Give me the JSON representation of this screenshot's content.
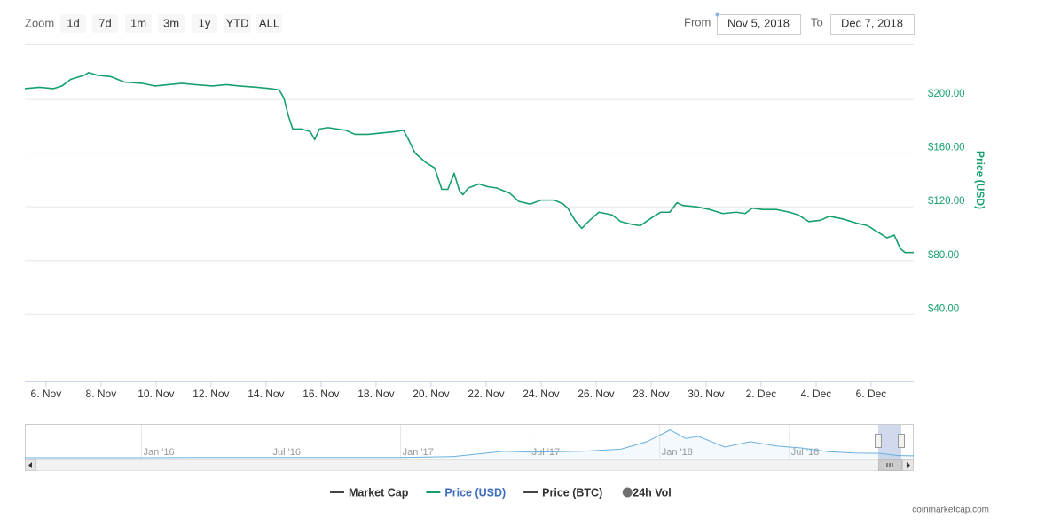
{
  "range_selector": {
    "label": "Zoom",
    "buttons": [
      "1d",
      "7d",
      "1m",
      "3m",
      "1y",
      "YTD",
      "ALL"
    ],
    "from_label": "From",
    "from": "Nov 5, 2018",
    "to_label": "To",
    "to": "Dec 7, 2018"
  },
  "credit": "coinmarketcap.com",
  "chart_data": [
    {
      "type": "line",
      "y_axis_title": "Price (USD)",
      "y_axis_side": "right",
      "grid": true,
      "xlim": [
        5.23,
        37.55
      ],
      "xticks": [
        {
          "value": 6,
          "label": "6. Nov"
        },
        {
          "value": 8,
          "label": "8. Nov"
        },
        {
          "value": 10,
          "label": "10. Nov"
        },
        {
          "value": 12,
          "label": "12. Nov"
        },
        {
          "value": 14,
          "label": "14. Nov"
        },
        {
          "value": 16,
          "label": "16. Nov"
        },
        {
          "value": 18,
          "label": "18. Nov"
        },
        {
          "value": 20,
          "label": "20. Nov"
        },
        {
          "value": 22,
          "label": "22. Nov"
        },
        {
          "value": 24,
          "label": "24. Nov"
        },
        {
          "value": 26,
          "label": "26. Nov"
        },
        {
          "value": 28,
          "label": "28. Nov"
        },
        {
          "value": 30,
          "label": "30. Nov"
        },
        {
          "value": 32,
          "label": "2. Dec"
        },
        {
          "value": 34,
          "label": "4. Dec"
        },
        {
          "value": 36,
          "label": "6. Dec"
        }
      ],
      "ylim": [
        -10,
        241
      ],
      "yticks": [
        {
          "value": 40,
          "label": "$40.00"
        },
        {
          "value": 80,
          "label": "$80.00"
        },
        {
          "value": 120,
          "label": "$120.00"
        },
        {
          "value": 160,
          "label": "$160.00"
        },
        {
          "value": 200,
          "label": "$200.00"
        }
      ],
      "x": [
        5.23,
        5.77,
        6.26,
        6.58,
        6.9,
        7.39,
        7.55,
        7.87,
        8.35,
        8.84,
        9.48,
        9.97,
        10.45,
        10.94,
        11.42,
        12.06,
        12.55,
        13.03,
        13.68,
        14.16,
        14.48,
        14.65,
        14.81,
        14.97,
        15.29,
        15.61,
        15.77,
        15.94,
        16.26,
        16.58,
        16.9,
        17.23,
        17.71,
        18.19,
        18.68,
        19.0,
        19.16,
        19.42,
        19.81,
        20.13,
        20.39,
        20.61,
        20.84,
        21.03,
        21.16,
        21.35,
        21.74,
        22.06,
        22.39,
        22.87,
        23.19,
        23.61,
        24.0,
        24.48,
        24.81,
        24.97,
        25.23,
        25.48,
        25.77,
        26.1,
        26.58,
        26.9,
        27.29,
        27.61,
        28.03,
        28.35,
        28.68,
        28.94,
        29.16,
        29.65,
        30.13,
        30.61,
        31.1,
        31.42,
        31.68,
        32.06,
        32.55,
        33.03,
        33.35,
        33.74,
        34.16,
        34.48,
        34.97,
        35.45,
        35.87,
        36.26,
        36.58,
        36.84,
        37.06,
        37.23,
        37.55
      ],
      "series": [
        {
          "name": "Market Cap",
          "color": "#434348",
          "visible": false,
          "symbol": "line"
        },
        {
          "name": "Price (USD)",
          "color": "#17a06b",
          "visible": true,
          "symbol": "line",
          "values": [
            208,
            209,
            208,
            210,
            215,
            218,
            220,
            218,
            217,
            213,
            212,
            210,
            211,
            212,
            211,
            210,
            211,
            210,
            209,
            208,
            207,
            201,
            188,
            178,
            178,
            176,
            170,
            178,
            179,
            178,
            177,
            174,
            174,
            175,
            176,
            177,
            171,
            160,
            153,
            149,
            133,
            133,
            145,
            132,
            129,
            134,
            137,
            135,
            134,
            130,
            124,
            122,
            125,
            125,
            122,
            119,
            110,
            104,
            110,
            116,
            114,
            109,
            107,
            106,
            112,
            116,
            116,
            123,
            121,
            120,
            118,
            115,
            116,
            115,
            119,
            118,
            118,
            116,
            114,
            109,
            110,
            113,
            111,
            108,
            106,
            101,
            97,
            99,
            89,
            86,
            86
          ]
        },
        {
          "name": "Price (BTC)",
          "color": "#434348",
          "visible": false,
          "symbol": "line"
        },
        {
          "name": "24h Vol",
          "color": "#6e6e6e",
          "visible": false,
          "symbol": "circle"
        }
      ]
    },
    {
      "type": "area",
      "color": "#6ab0de",
      "xlim": [
        2015.55,
        2018.98
      ],
      "xticks": [
        {
          "value": 2016,
          "label": "Jan '16"
        },
        {
          "value": 2016.5,
          "label": "Jul '16"
        },
        {
          "value": 2017,
          "label": "Jan '17"
        },
        {
          "value": 2017.5,
          "label": "Jul '17"
        },
        {
          "value": 2018,
          "label": "Jan '18"
        },
        {
          "value": 2018.5,
          "label": "Jul '18"
        }
      ],
      "ylim": [
        0,
        1450
      ],
      "x": [
        2015.55,
        2016.0,
        2016.2,
        2016.5,
        2017.0,
        2017.2,
        2017.4,
        2017.5,
        2017.7,
        2017.85,
        2017.95,
        2018.04,
        2018.1,
        2018.15,
        2018.25,
        2018.35,
        2018.45,
        2018.55,
        2018.65,
        2018.75,
        2018.85,
        2018.92,
        2018.98
      ],
      "values": [
        1,
        1,
        10,
        12,
        10,
        50,
        300,
        260,
        300,
        400,
        750,
        1300,
        900,
        1000,
        500,
        750,
        550,
        450,
        280,
        220,
        200,
        100,
        90
      ]
    }
  ]
}
